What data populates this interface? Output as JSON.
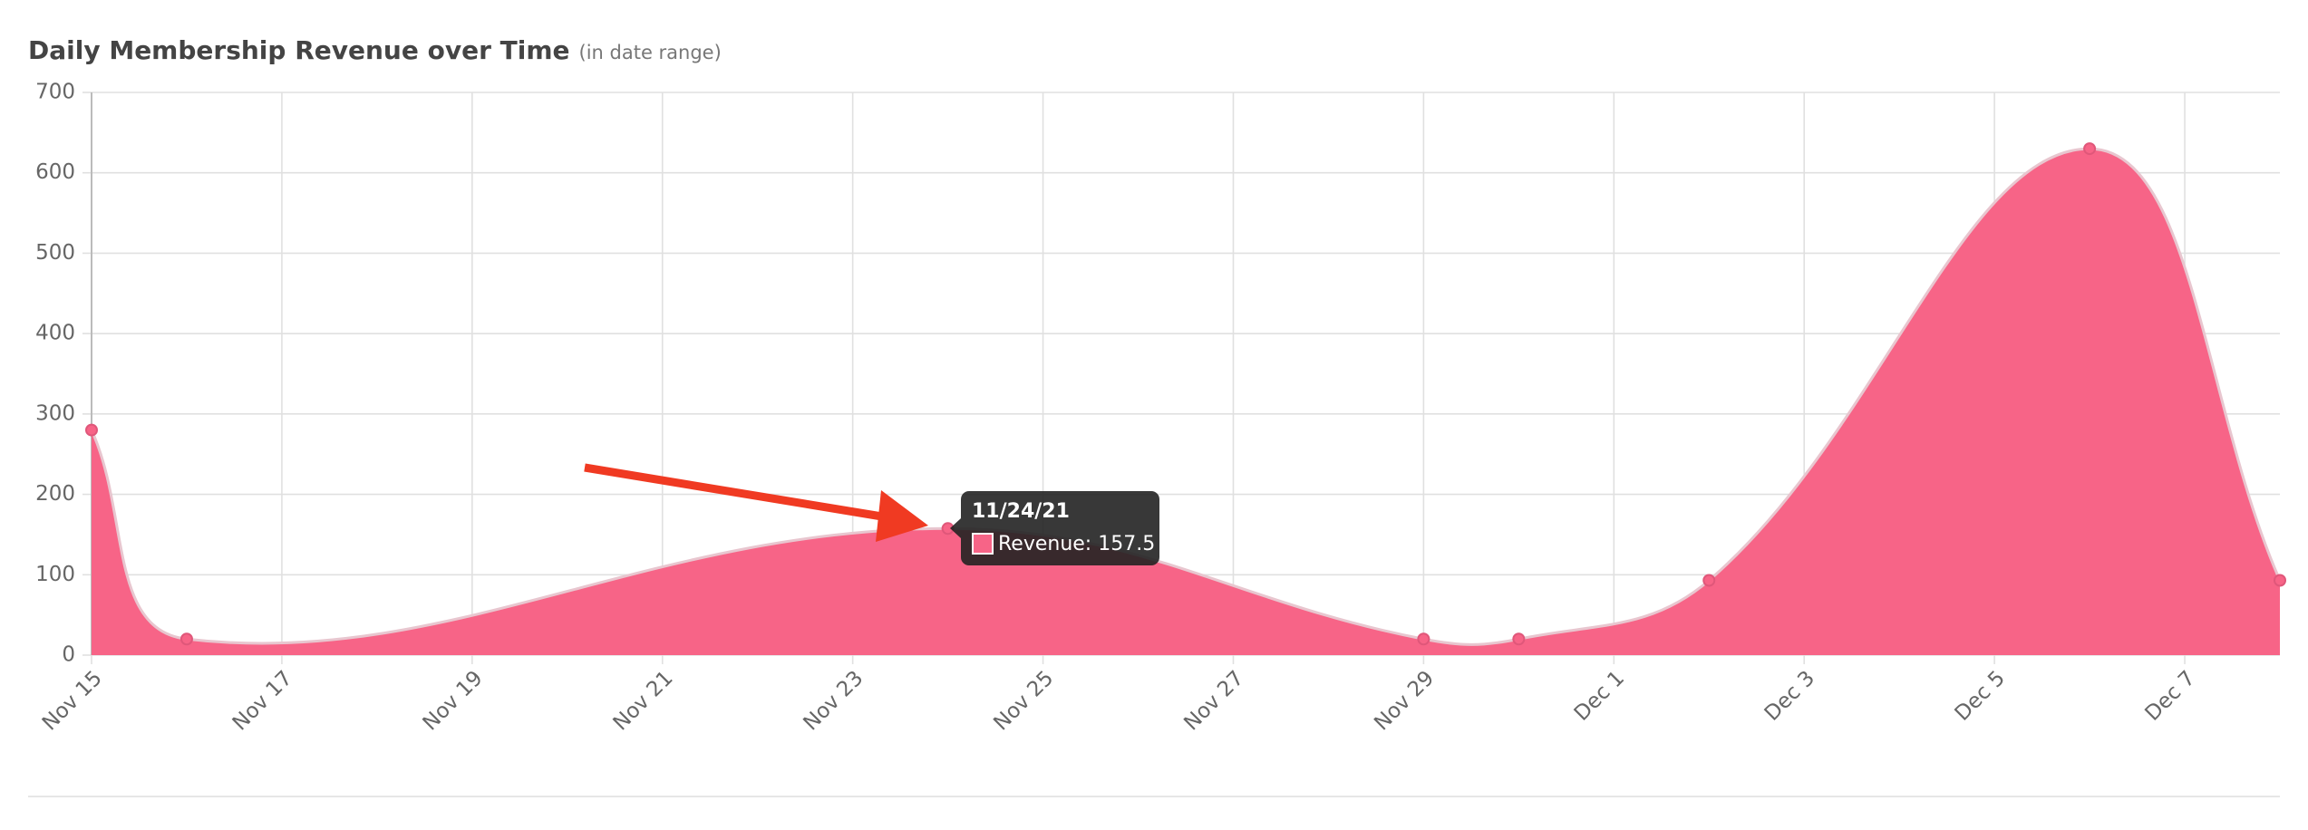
{
  "chart_data": {
    "type": "area",
    "title": "Daily Membership Revenue over Time",
    "subtitle": "(in date range)",
    "x": [
      "Nov 15",
      "Nov 16",
      "Nov 24",
      "Nov 29",
      "Nov 30",
      "Dec 2",
      "Dec 6",
      "Dec 8"
    ],
    "series": [
      {
        "name": "Revenue",
        "color": "#f76487",
        "values": [
          280,
          20,
          157.5,
          20,
          20,
          93,
          630,
          93
        ]
      }
    ],
    "xlim": [
      "Nov 15",
      "Dec 8"
    ],
    "xticks": [
      "Nov 15",
      "Nov 17",
      "Nov 19",
      "Nov 21",
      "Nov 23",
      "Nov 25",
      "Nov 27",
      "Nov 29",
      "Dec 1",
      "Dec 3",
      "Dec 5",
      "Dec 7"
    ],
    "ylim": [
      0,
      700
    ],
    "yticks": [
      0,
      100,
      200,
      300,
      400,
      500,
      600,
      700
    ],
    "grid": true,
    "tooltip": {
      "title": "11/24/21",
      "label": "Revenue: 157.5"
    }
  }
}
